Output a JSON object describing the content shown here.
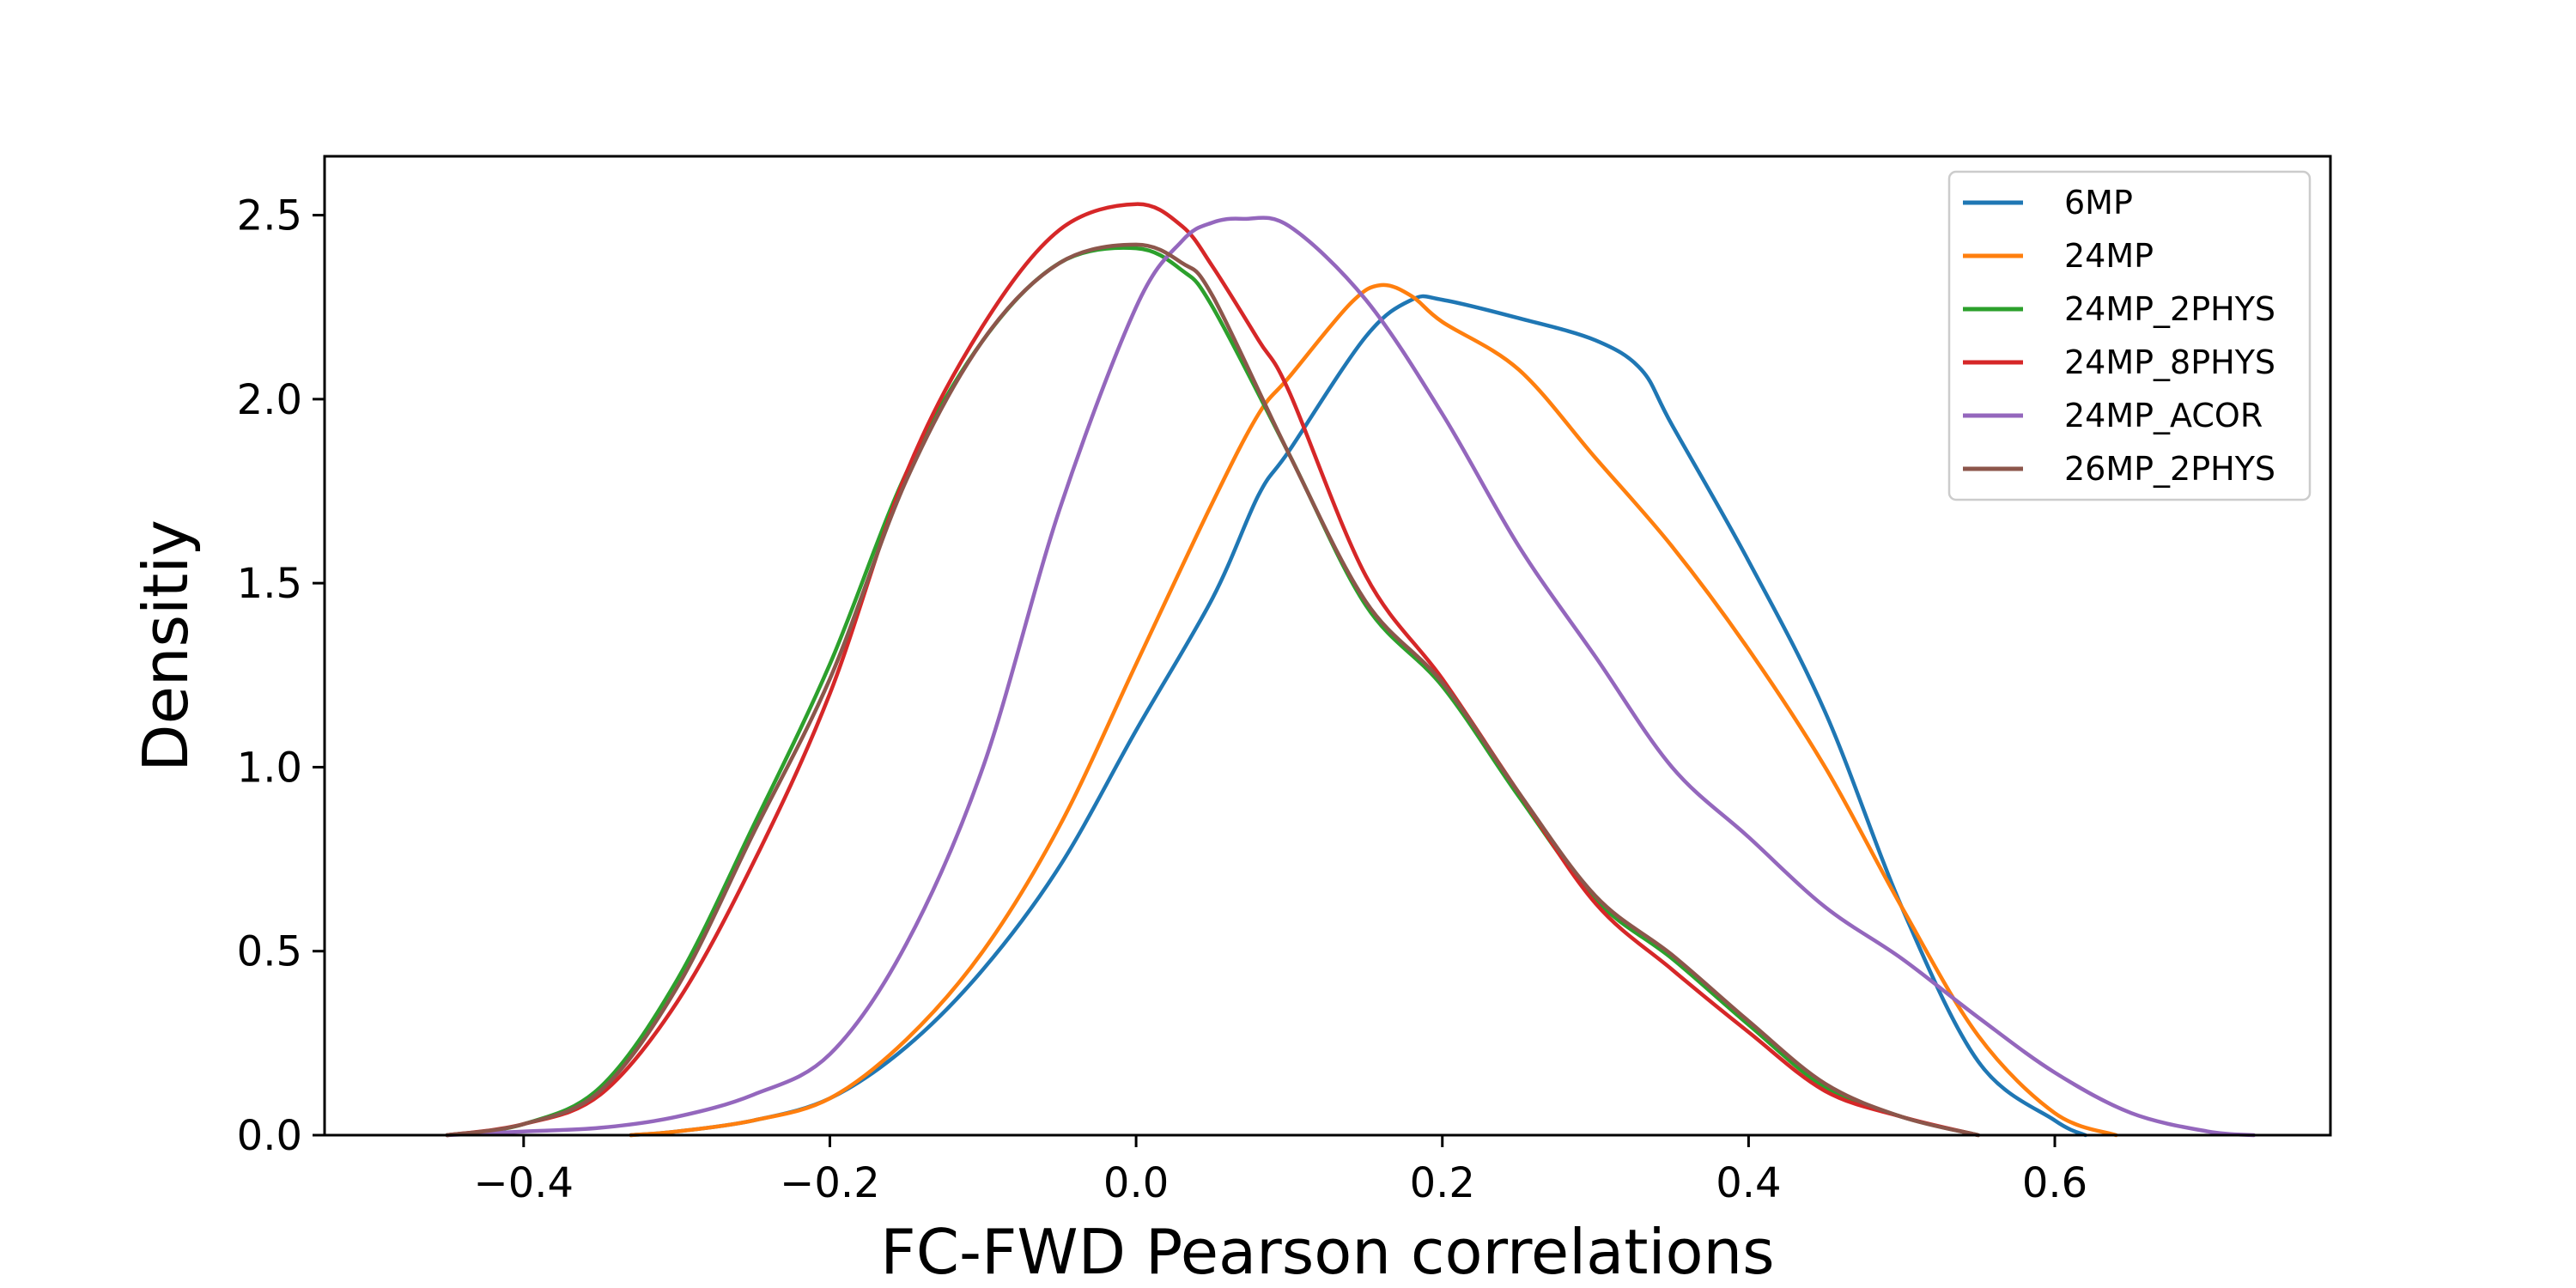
{
  "chart_data": {
    "type": "line",
    "title": "",
    "xlabel": "FC-FWD Pearson correlations",
    "ylabel": "Densitiy",
    "xlim": [
      -0.53,
      0.78
    ],
    "ylim": [
      0.0,
      2.66
    ],
    "x_ticks": [
      -0.4,
      -0.2,
      0.0,
      0.2,
      0.4,
      0.6
    ],
    "x_tick_labels": [
      "−0.4",
      "−0.2",
      "0.0",
      "0.2",
      "0.4",
      "0.6"
    ],
    "y_ticks": [
      0.0,
      0.5,
      1.0,
      1.5,
      2.0,
      2.5
    ],
    "y_tick_labels": [
      "0.0",
      "0.5",
      "1.0",
      "1.5",
      "2.0",
      "2.5"
    ],
    "grid": false,
    "legend_position": "top-right",
    "series": [
      {
        "name": "6MP",
        "color": "#1f77b4",
        "x": [
          -0.33,
          -0.3,
          -0.25,
          -0.2,
          -0.15,
          -0.1,
          -0.05,
          0.0,
          0.05,
          0.08,
          0.1,
          0.15,
          0.18,
          0.2,
          0.25,
          0.3,
          0.33,
          0.35,
          0.4,
          0.45,
          0.5,
          0.55,
          0.6,
          0.62
        ],
        "y": [
          0.0,
          0.01,
          0.04,
          0.1,
          0.24,
          0.45,
          0.73,
          1.1,
          1.46,
          1.74,
          1.86,
          2.17,
          2.27,
          2.27,
          2.22,
          2.16,
          2.08,
          1.93,
          1.56,
          1.15,
          0.62,
          0.2,
          0.04,
          0.0
        ]
      },
      {
        "name": "24MP",
        "color": "#ff7f0e",
        "x": [
          -0.33,
          -0.3,
          -0.25,
          -0.2,
          -0.15,
          -0.1,
          -0.05,
          0.0,
          0.05,
          0.08,
          0.1,
          0.14,
          0.16,
          0.18,
          0.2,
          0.25,
          0.3,
          0.35,
          0.4,
          0.45,
          0.5,
          0.55,
          0.6,
          0.64
        ],
        "y": [
          0.0,
          0.01,
          0.04,
          0.1,
          0.26,
          0.5,
          0.84,
          1.28,
          1.72,
          1.96,
          2.06,
          2.26,
          2.31,
          2.28,
          2.21,
          2.08,
          1.84,
          1.6,
          1.32,
          1.0,
          0.62,
          0.27,
          0.06,
          0.0
        ]
      },
      {
        "name": "24MP_2PHYS",
        "color": "#2ca02c",
        "x": [
          -0.45,
          -0.4,
          -0.35,
          -0.3,
          -0.25,
          -0.2,
          -0.15,
          -0.1,
          -0.05,
          0.0,
          0.03,
          0.05,
          0.1,
          0.15,
          0.2,
          0.25,
          0.3,
          0.35,
          0.4,
          0.45,
          0.5,
          0.55
        ],
        "y": [
          0.0,
          0.03,
          0.13,
          0.42,
          0.84,
          1.28,
          1.8,
          2.16,
          2.37,
          2.41,
          2.35,
          2.25,
          1.85,
          1.44,
          1.22,
          0.92,
          0.64,
          0.48,
          0.3,
          0.13,
          0.05,
          0.0
        ]
      },
      {
        "name": "24MP_8PHYS",
        "color": "#d62728",
        "x": [
          -0.45,
          -0.4,
          -0.35,
          -0.3,
          -0.25,
          -0.2,
          -0.15,
          -0.1,
          -0.05,
          0.0,
          0.03,
          0.05,
          0.08,
          0.1,
          0.15,
          0.2,
          0.25,
          0.3,
          0.35,
          0.4,
          0.45,
          0.5,
          0.55
        ],
        "y": [
          0.0,
          0.03,
          0.11,
          0.36,
          0.74,
          1.2,
          1.8,
          2.2,
          2.46,
          2.53,
          2.47,
          2.36,
          2.16,
          2.02,
          1.52,
          1.24,
          0.93,
          0.63,
          0.45,
          0.28,
          0.12,
          0.05,
          0.0
        ]
      },
      {
        "name": "24MP_ACOR",
        "color": "#9467bd",
        "x": [
          -0.45,
          -0.4,
          -0.35,
          -0.3,
          -0.25,
          -0.2,
          -0.15,
          -0.1,
          -0.05,
          0.0,
          0.03,
          0.05,
          0.07,
          0.1,
          0.15,
          0.2,
          0.25,
          0.3,
          0.35,
          0.4,
          0.45,
          0.5,
          0.55,
          0.6,
          0.65,
          0.7,
          0.73
        ],
        "y": [
          0.0,
          0.01,
          0.02,
          0.05,
          0.11,
          0.22,
          0.52,
          1.0,
          1.7,
          2.25,
          2.43,
          2.48,
          2.49,
          2.47,
          2.27,
          1.96,
          1.6,
          1.3,
          1.0,
          0.81,
          0.62,
          0.48,
          0.32,
          0.17,
          0.06,
          0.01,
          0.0
        ]
      },
      {
        "name": "26MP_2PHYS",
        "color": "#8c564b",
        "x": [
          -0.45,
          -0.4,
          -0.35,
          -0.3,
          -0.25,
          -0.2,
          -0.15,
          -0.1,
          -0.05,
          0.0,
          0.03,
          0.05,
          0.1,
          0.15,
          0.2,
          0.25,
          0.3,
          0.35,
          0.4,
          0.45,
          0.5,
          0.55
        ],
        "y": [
          0.0,
          0.03,
          0.12,
          0.4,
          0.82,
          1.24,
          1.78,
          2.16,
          2.37,
          2.42,
          2.37,
          2.28,
          1.85,
          1.45,
          1.23,
          0.93,
          0.65,
          0.49,
          0.31,
          0.14,
          0.05,
          0.0
        ]
      }
    ]
  }
}
